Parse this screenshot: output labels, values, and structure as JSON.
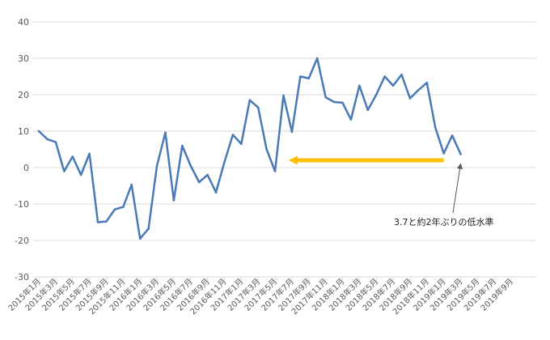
{
  "chart_data": {
    "type": "line",
    "title": "",
    "xlabel": "",
    "ylabel": "",
    "ylim": [
      -30,
      40
    ],
    "y_ticks": [
      40,
      30,
      20,
      10,
      0,
      -10,
      -20,
      -30
    ],
    "y_tick_labels": [
      "40",
      "30",
      "20",
      "10",
      "0",
      "-10",
      "-20",
      "-30"
    ],
    "grid": true,
    "legend": "none",
    "x_tick_labels": [
      "2015年1月",
      "2015年3月",
      "2015年5月",
      "2015年7月",
      "2015年9月",
      "2015年11月",
      "2016年1月",
      "2016年3月",
      "2016年5月",
      "2016年7月",
      "2016年9月",
      "2016年11月",
      "2017年1月",
      "2017年3月",
      "2017年5月",
      "2017年7月",
      "2017年9月",
      "2017年11月",
      "2018年1月",
      "2018年3月",
      "2018年5月",
      "2018年7月",
      "2018年9月",
      "2018年11月",
      "2019年1月",
      "2019年3月",
      "2019年5月",
      "2019年7月",
      "2019年9月"
    ],
    "series": [
      {
        "color": "#4a7ab5",
        "values": [
          10,
          7.8,
          7,
          -1,
          3,
          -2,
          3.8,
          -15,
          -14.8,
          -11.5,
          -10.8,
          -4.7,
          -19.5,
          -16.8,
          0.5,
          9.6,
          -9,
          6,
          0.5,
          -4,
          -2,
          -6.8,
          1.5,
          9,
          6.5,
          18.5,
          16.5,
          5,
          -1,
          19.8,
          9.8,
          25,
          24.5,
          30,
          19.3,
          18,
          17.8,
          13.2,
          22.5,
          15.8,
          20,
          25,
          22.5,
          25.5,
          19,
          21.3,
          23.3,
          11,
          3.9,
          8.8,
          3.7
        ]
      }
    ],
    "annotations": [
      {
        "text": "3.7と約2年ぶりの低水準",
        "target_index": 50,
        "arrow_color": "#555555"
      }
    ],
    "highlight_arrow": {
      "color": "#ffc000",
      "from_index": 48,
      "to_index": 30,
      "y": 2
    }
  }
}
